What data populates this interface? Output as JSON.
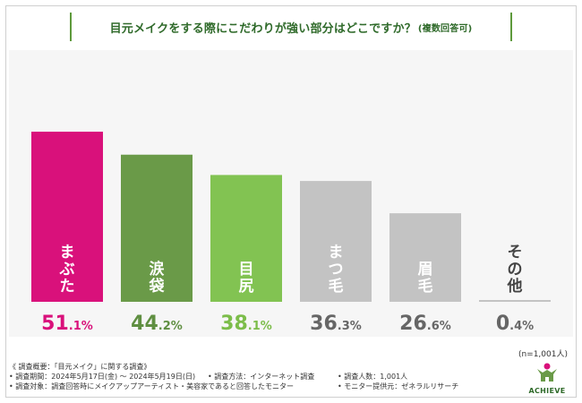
{
  "title": {
    "main": "目元メイクをする際にこだわりが強い部分はどこですか？",
    "sub": "(複数回答可)"
  },
  "chart_data": {
    "type": "bar",
    "title": "目元メイクをする際にこだわりが強い部分はどこですか？(複数回答可)",
    "categories": [
      "まぶた",
      "涙袋",
      "目尻",
      "まつ毛",
      "眉毛",
      "その他"
    ],
    "values": [
      51.1,
      44.2,
      38.1,
      36.3,
      26.6,
      0.4
    ],
    "value_labels": [
      "51.1%",
      "44.2%",
      "38.1%",
      "36.3%",
      "26.6%",
      "0.4%"
    ],
    "colors": [
      "#d9117b",
      "#6a9a48",
      "#82c352",
      "#c3c3c3",
      "#c3c3c3",
      "#c3c3c3"
    ],
    "label_colors": [
      "#d9117b",
      "#5f8f41",
      "#7cbd4a",
      "#666666",
      "#666666",
      "#666666"
    ],
    "ylim": [
      0,
      60
    ],
    "xlabel": "",
    "ylabel": ""
  },
  "note": "(n=1,001人)",
  "footer": {
    "line1": "《 調査概要：「目元メイク」に関する調査》",
    "period": "• 調査期間：2024年5月17日(金) ～ 2024年5月19日(日)",
    "method": "• 調査方法：インターネット調査",
    "count": "• 調査人数：1,001人",
    "target": "• 調査対象：調査回答時にメイクアップアーティスト・美容家であると回答したモニター",
    "provider": "• モニター提供元：ゼネラルリサーチ"
  },
  "logo": {
    "text": "ACHIEVE",
    "colors": [
      "#d9117b",
      "#6a9a48"
    ]
  }
}
